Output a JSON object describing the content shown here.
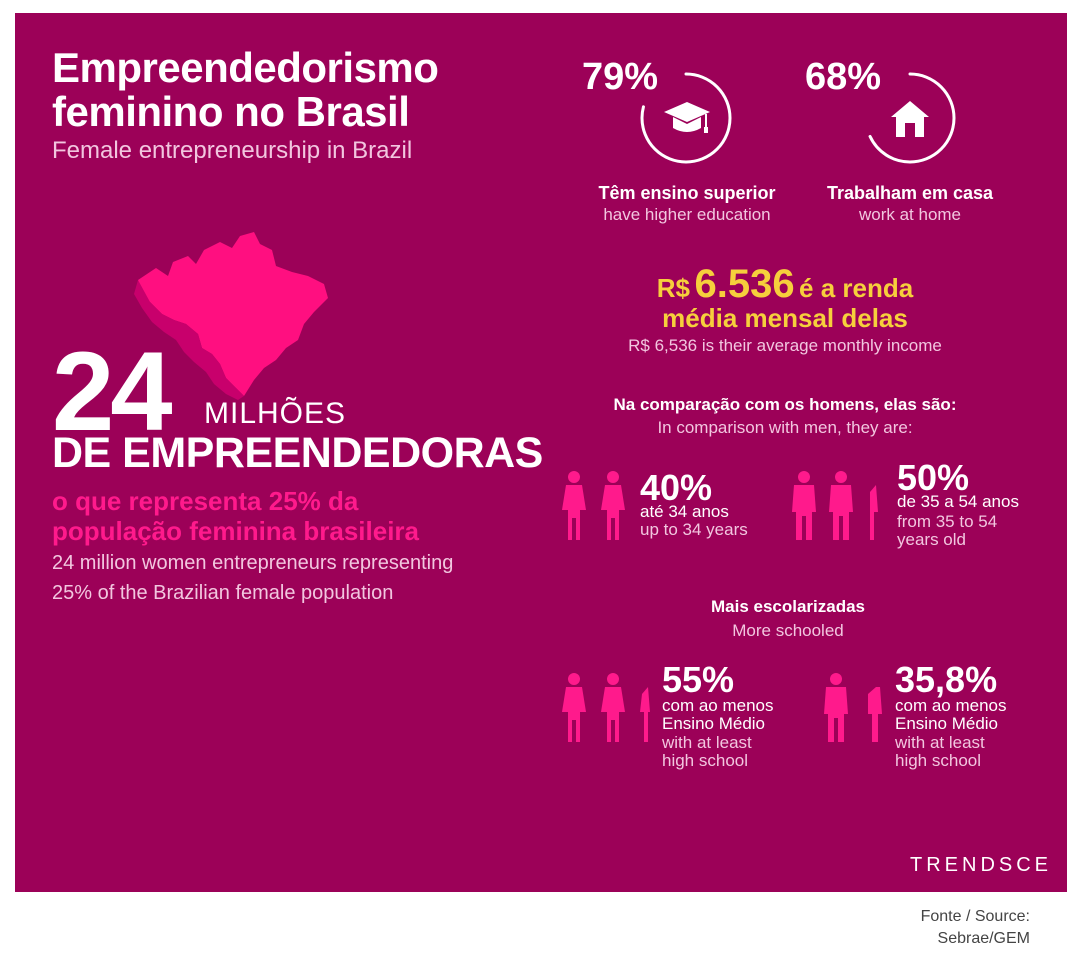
{
  "title_line1": "Empreendedorismo",
  "title_line2": "feminino no Brasil",
  "subtitle": "Female entrepreneurship in Brazil",
  "main_stat": {
    "number": "24",
    "unit": "MILHÕES",
    "label": "DE EMPREENDEDORAS",
    "represent_line1": "o que representa 25% da",
    "represent_line2": "população feminina brasileira",
    "en_line1": "24 million women entrepreneurs representing",
    "en_line2": "25% of the Brazilian female population"
  },
  "education": {
    "percent": "79%",
    "value": 0.79,
    "label_pt": "Têm ensino superior",
    "label_en": "have higher education",
    "icon": "graduation-cap-icon"
  },
  "home": {
    "percent": "68%",
    "value": 0.68,
    "label_pt": "Trabalham em casa",
    "label_en": "work at home",
    "icon": "house-icon"
  },
  "income": {
    "currency": "R$",
    "amount": "6.536",
    "suffix": "é a renda",
    "line2": "média mensal delas",
    "en": "R$ 6,536 is their average monthly income"
  },
  "comparison": {
    "heading_pt": "Na comparação com os homens, elas são:",
    "heading_en": "In comparison with men, they are:",
    "young": {
      "percent": "40%",
      "pt": "até 34 anos",
      "en": "up to 34 years"
    },
    "middle": {
      "percent": "50%",
      "pt": "de 35 a 54 anos",
      "en_line1": "from 35 to 54",
      "en_line2": "years old"
    }
  },
  "schooled": {
    "heading_pt": "Mais escolarizadas",
    "heading_en": "More schooled",
    "women": {
      "percent": "55%",
      "pt_line1": "com ao menos",
      "pt_line2": "Ensino Médio",
      "en_line1": "with at least",
      "en_line2": "high school"
    },
    "men": {
      "percent": "35,8%",
      "pt_line1": "com ao menos",
      "pt_line2": "Ensino Médio",
      "en_line1": "with at least",
      "en_line2": "high school"
    }
  },
  "logo": "TRENDSCE",
  "source_line1": "Fonte / Source:",
  "source_line2": "Sebrae/GEM",
  "colors": {
    "background": "#9c0158",
    "accent_pink": "#ff1a8c",
    "income_yellow": "#f6cf3c"
  }
}
